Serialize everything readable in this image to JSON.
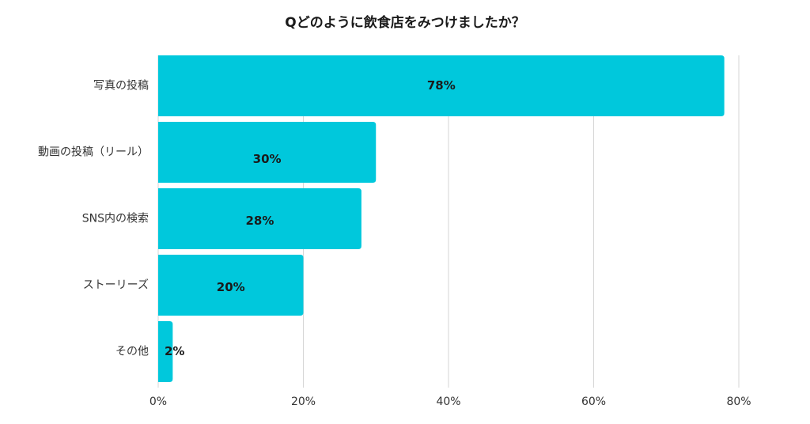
{
  "chart_data": {
    "type": "bar",
    "orientation": "horizontal",
    "title": "Qどのように飲食店をみつけましたか？",
    "categories": [
      "写真の投稿",
      "動画の投稿（リール）",
      "SNS内の検索",
      "ストーリーズ",
      "その他"
    ],
    "values": [
      78,
      30,
      28,
      20,
      2
    ],
    "value_labels": [
      "78%",
      "30%",
      "28%",
      "20%",
      "2%"
    ],
    "xlim": [
      0,
      80
    ],
    "xticks": [
      0,
      20,
      40,
      60,
      80
    ],
    "xtick_labels": [
      "0%",
      "20%",
      "40%",
      "60%",
      "80%"
    ],
    "grid": true,
    "bar_color": "#00C8DC"
  }
}
